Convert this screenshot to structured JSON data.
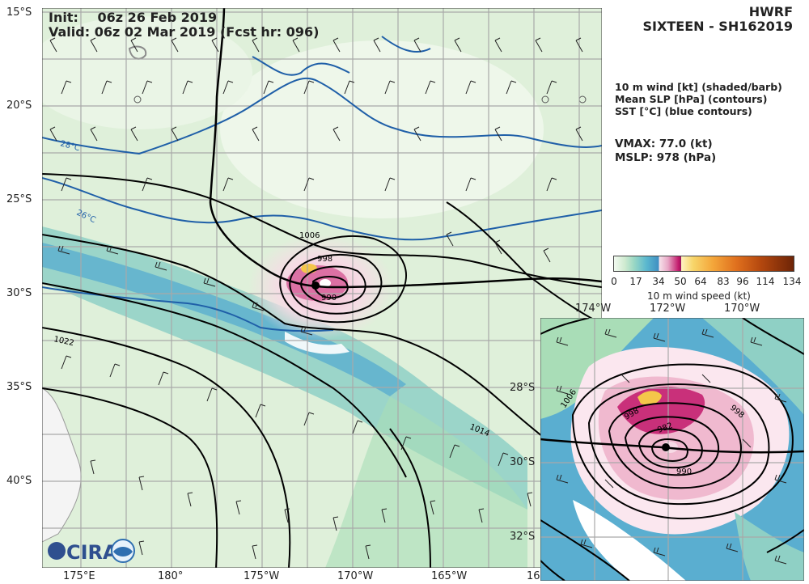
{
  "header": {
    "init_label": "Init:",
    "init_value": "06z 26 Feb 2019",
    "valid_line": "Valid: 06z 02 Mar 2019 (Fcst hr: 096)",
    "model": "HWRF",
    "storm": "SIXTEEN - SH162019"
  },
  "legend_text": {
    "line1": "10 m wind [kt] (shaded/barb)",
    "line2": "Mean SLP [hPa] (contours)",
    "line3": "SST [°C] (blue contours)"
  },
  "stats": {
    "vmax": "VMAX:  77.0 (kt)",
    "mslp": "MSLP:  978 (hPa)"
  },
  "colorbar": {
    "label": "10 m wind speed (kt)",
    "ticks": [
      "0",
      "17",
      "34",
      "50",
      "64",
      "83",
      "96",
      "114",
      "134"
    ]
  },
  "main_map": {
    "lat_labels": [
      "15°S",
      "20°S",
      "25°S",
      "30°S",
      "35°S",
      "40°S"
    ],
    "lon_labels": [
      "175°E",
      "180°",
      "175°W",
      "170°W",
      "165°W",
      "16"
    ],
    "slp_labels": [
      "1006",
      "998",
      "990",
      "1022",
      "1014"
    ],
    "sst_labels": [
      "28°C",
      "26°C"
    ]
  },
  "inset_map": {
    "lon_labels": [
      "174°W",
      "172°W",
      "170°W"
    ],
    "lat_labels": [
      "28°S",
      "30°S",
      "32°S"
    ],
    "slp_labels": [
      "1006",
      "998",
      "982",
      "990",
      "998"
    ]
  },
  "logos": {
    "cira": "CIRA"
  },
  "colors": {
    "wind_bg_light": "#e3f2e2",
    "wind_34": "#4fa6c9",
    "wind_50": "#c2186b",
    "wind_64": "#f4c64a",
    "sst_contour": "#1f5fa8",
    "slp_contour": "#000000"
  }
}
